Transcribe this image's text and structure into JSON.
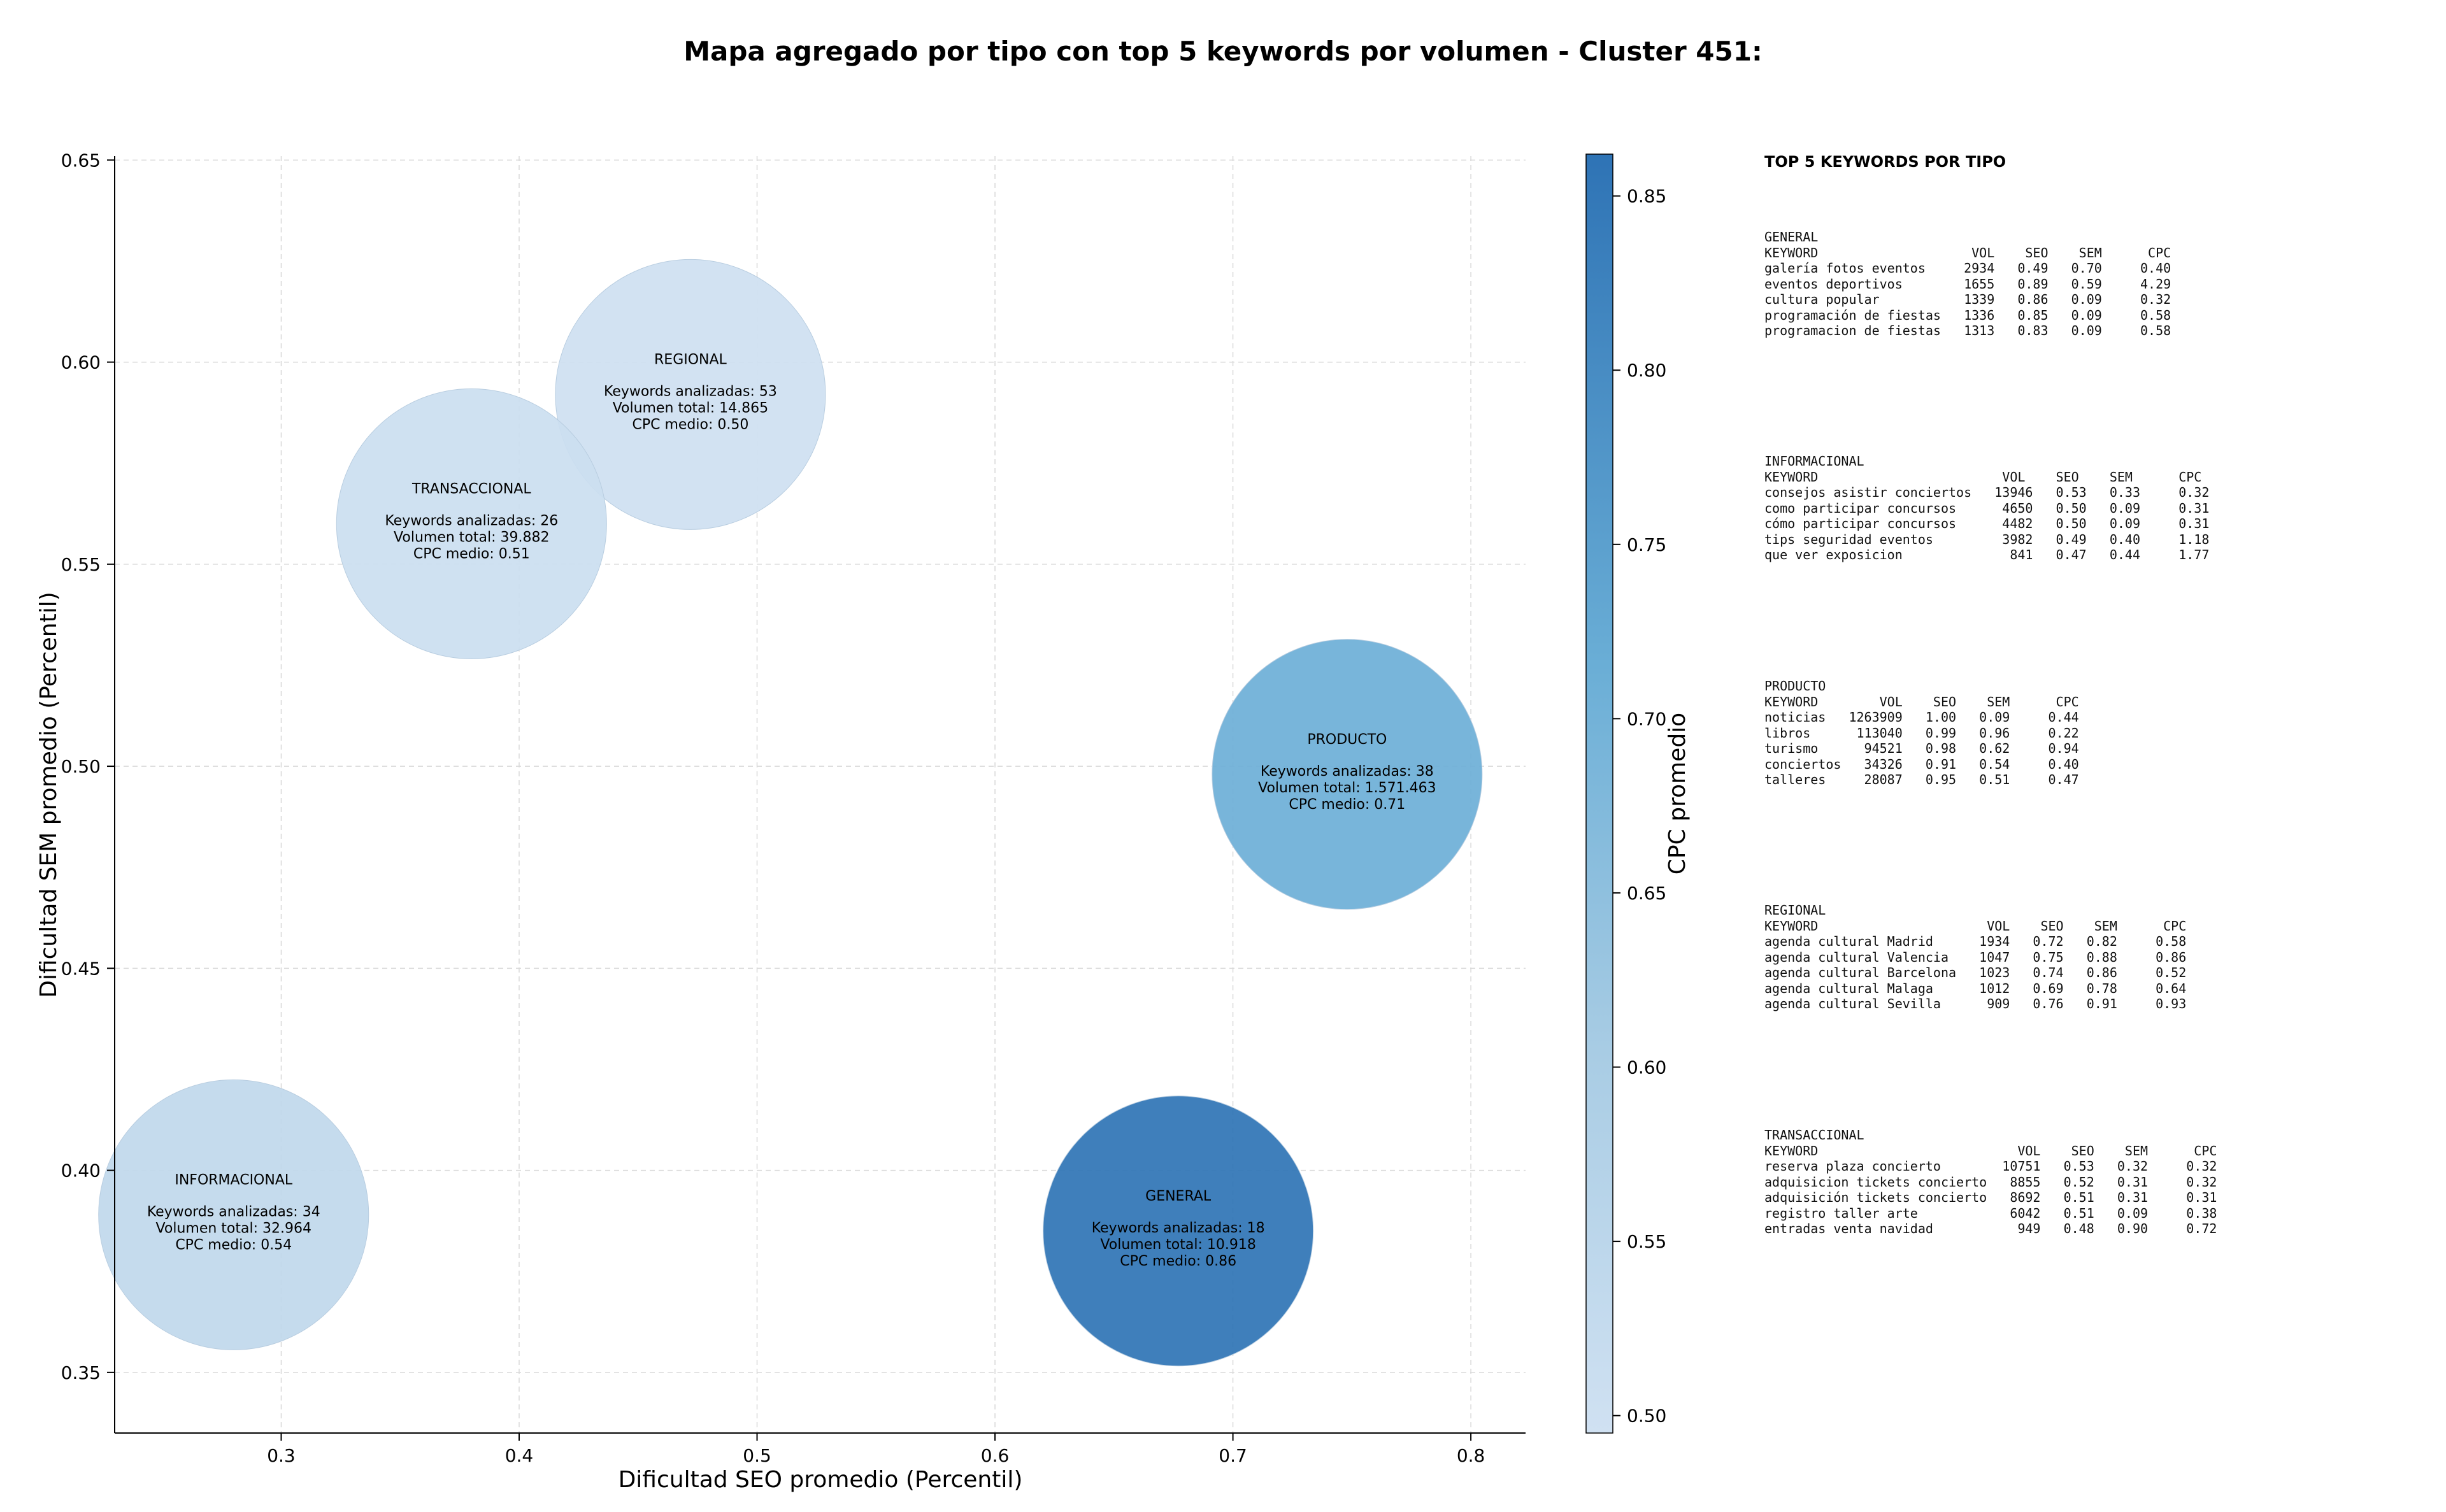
{
  "chart_data": {
    "type": "scatter",
    "title": "Mapa agregado por tipo con top 5 keywords por volumen - Cluster 451:",
    "xlabel": "Dificultad SEO promedio (Percentil)",
    "ylabel": "Dificultad SEM promedio (Percentil)",
    "xlim": [
      0.23,
      0.823
    ],
    "ylim": [
      0.335,
      0.651
    ],
    "xticks": [
      "0.3",
      "0.4",
      "0.5",
      "0.6",
      "0.7",
      "0.8"
    ],
    "yticks": [
      "0.35",
      "0.40",
      "0.45",
      "0.50",
      "0.55",
      "0.60",
      "0.65"
    ],
    "grid": true,
    "colorbar": {
      "label": "CPC promedio",
      "range": [
        0.495,
        0.862
      ],
      "ticks": [
        "0.50",
        "0.55",
        "0.60",
        "0.65",
        "0.70",
        "0.75",
        "0.80",
        "0.85"
      ],
      "color_low": "#d0e1f2",
      "color_high": "#2e73b5"
    },
    "points": [
      {
        "name": "REGIONAL",
        "x": 0.472,
        "y": 0.592,
        "cpc": 0.5,
        "size": 53,
        "keywords_text": "Keywords analizadas: 53",
        "volume_text": "Volumen total: 14.865",
        "cpc_text": "CPC medio: 0.50"
      },
      {
        "name": "TRANSACCIONAL",
        "x": 0.38,
        "y": 0.56,
        "cpc": 0.51,
        "size": 26,
        "keywords_text": "Keywords analizadas: 26",
        "volume_text": "Volumen total: 39.882",
        "cpc_text": "CPC medio: 0.51"
      },
      {
        "name": "PRODUCTO",
        "x": 0.748,
        "y": 0.498,
        "cpc": 0.71,
        "size": 38,
        "keywords_text": "Keywords analizadas: 38",
        "volume_text": "Volumen total: 1.571.463",
        "cpc_text": "CPC medio: 0.71"
      },
      {
        "name": "INFORMACIONAL",
        "x": 0.28,
        "y": 0.389,
        "cpc": 0.54,
        "size": 34,
        "keywords_text": "Keywords analizadas: 34",
        "volume_text": "Volumen total: 32.964",
        "cpc_text": "CPC medio: 0.54"
      },
      {
        "name": "GENERAL",
        "x": 0.677,
        "y": 0.385,
        "cpc": 0.86,
        "size": 18,
        "keywords_text": "Keywords analizadas: 18",
        "volume_text": "Volumen total: 10.918",
        "cpc_text": "CPC medio: 0.86"
      }
    ]
  },
  "side_panel": {
    "heading": "TOP 5 KEYWORDS POR TIPO",
    "blocks": [
      {
        "name": "GENERAL",
        "text": "GENERAL\nKEYWORD                    VOL    SEO    SEM      CPC\ngalería fotos eventos     2934   0.49   0.70     0.40\neventos deportivos        1655   0.89   0.59     4.29\ncultura popular           1339   0.86   0.09     0.32\nprogramación de fiestas   1336   0.85   0.09     0.58\nprogramacion de fiestas   1313   0.83   0.09     0.58"
      },
      {
        "name": "INFORMACIONAL",
        "text": "INFORMACIONAL\nKEYWORD                        VOL    SEO    SEM      CPC\nconsejos asistir conciertos   13946   0.53   0.33     0.32\ncomo participar concursos      4650   0.50   0.09     0.31\ncómo participar concursos      4482   0.50   0.09     0.31\ntips seguridad eventos         3982   0.49   0.40     1.18\nque ver exposicion              841   0.47   0.44     1.77"
      },
      {
        "name": "PRODUCTO",
        "text": "PRODUCTO\nKEYWORD        VOL    SEO    SEM      CPC\nnoticias   1263909   1.00   0.09     0.44\nlibros      113040   0.99   0.96     0.22\nturismo      94521   0.98   0.62     0.94\nconciertos   34326   0.91   0.54     0.40\ntalleres     28087   0.95   0.51     0.47"
      },
      {
        "name": "REGIONAL",
        "text": "REGIONAL\nKEYWORD                      VOL    SEO    SEM      CPC\nagenda cultural Madrid      1934   0.72   0.82     0.58\nagenda cultural Valencia    1047   0.75   0.88     0.86\nagenda cultural Barcelona   1023   0.74   0.86     0.52\nagenda cultural Malaga      1012   0.69   0.78     0.64\nagenda cultural Sevilla      909   0.76   0.91     0.93"
      },
      {
        "name": "TRANSACCIONAL",
        "text": "TRANSACCIONAL\nKEYWORD                          VOL    SEO    SEM      CPC\nreserva plaza concierto        10751   0.53   0.32     0.32\nadquisicion tickets concierto   8855   0.52   0.31     0.32\nadquisición tickets concierto   8692   0.51   0.31     0.31\nregistro taller arte            6042   0.51   0.09     0.38\nentradas venta navidad           949   0.48   0.90     0.72"
      }
    ]
  }
}
